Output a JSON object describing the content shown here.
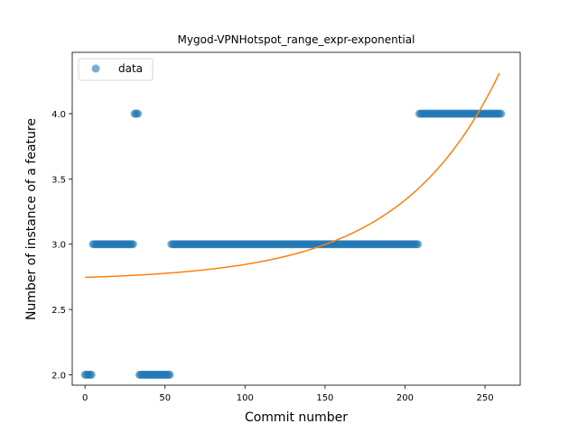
{
  "chart_data": {
    "type": "scatter",
    "title": "Mygod-VPNHotspot_range_expr-exponential",
    "xlabel": "Commit number",
    "ylabel": "Number of instance of a feature",
    "xlim": [
      -8,
      272
    ],
    "ylim": [
      1.92,
      4.47
    ],
    "xticks": [
      0,
      50,
      100,
      150,
      200,
      250
    ],
    "yticks": [
      2.0,
      2.5,
      3.0,
      3.5,
      4.0
    ],
    "xtick_labels": [
      "0",
      "50",
      "100",
      "150",
      "200",
      "250"
    ],
    "ytick_labels": [
      "2.0",
      "2.5",
      "3.0",
      "3.5",
      "4.0"
    ],
    "legend": {
      "position": "top-left",
      "entries": [
        "data"
      ]
    },
    "grid": false,
    "series": [
      {
        "name": "data",
        "kind": "scatter",
        "color": "#1f77b4",
        "segments": [
          {
            "x_start": 0,
            "x_end": 5,
            "y": 2.0
          },
          {
            "x_start": 5,
            "x_end": 31,
            "y": 3.0
          },
          {
            "x_start": 31,
            "x_end": 34,
            "y": 4.0
          },
          {
            "x_start": 34,
            "x_end": 54,
            "y": 2.0
          },
          {
            "x_start": 54,
            "x_end": 209,
            "y": 3.0
          },
          {
            "x_start": 209,
            "x_end": 261,
            "y": 4.0
          }
        ]
      },
      {
        "kind": "line",
        "color": "#ff7f0e",
        "fit": {
          "model": "a*exp(b*x)+c",
          "a": 0.0249,
          "b": 0.01605,
          "c": 2.7211
        },
        "x_range": [
          0,
          259
        ]
      }
    ]
  }
}
